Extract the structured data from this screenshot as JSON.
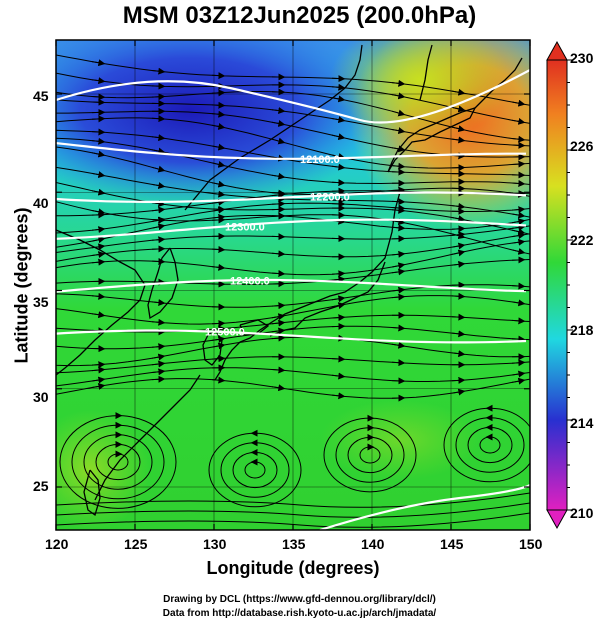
{
  "title": "MSM 03Z12Jun2025 (200.0hPa)",
  "axes": {
    "xlabel": "Longitude (degrees)",
    "ylabel": "Latitude  (degrees)",
    "xticks": [
      "120",
      "125",
      "130",
      "135",
      "140",
      "145",
      "150"
    ],
    "yticks": [
      "25",
      "30",
      "35",
      "40",
      "45"
    ]
  },
  "colorbar": {
    "ticks": [
      "230",
      "226",
      "222",
      "218",
      "214",
      "210"
    ],
    "colors": {
      "low": "#e020c0",
      "blue": "#2830d0",
      "cyan": "#20d8e0",
      "green": "#30d838",
      "yellow": "#d8e020",
      "orange": "#f08020",
      "high": "#e03020"
    }
  },
  "contours": [
    {
      "label": "12100.0",
      "lat": 42.5
    },
    {
      "label": "12200.0",
      "lat": 40.0
    },
    {
      "label": "12300.0",
      "lat": 38.0
    },
    {
      "label": "12400.0",
      "lat": 35.0
    },
    {
      "label": "12500.0",
      "lat": 32.5
    }
  ],
  "credits": {
    "line1": "Drawing by DCL (https://www.gfd-dennou.org/library/dcl/)",
    "line2": "Data from http://database.rish.kyoto-u.ac.jp/arch/jmadata/"
  }
}
